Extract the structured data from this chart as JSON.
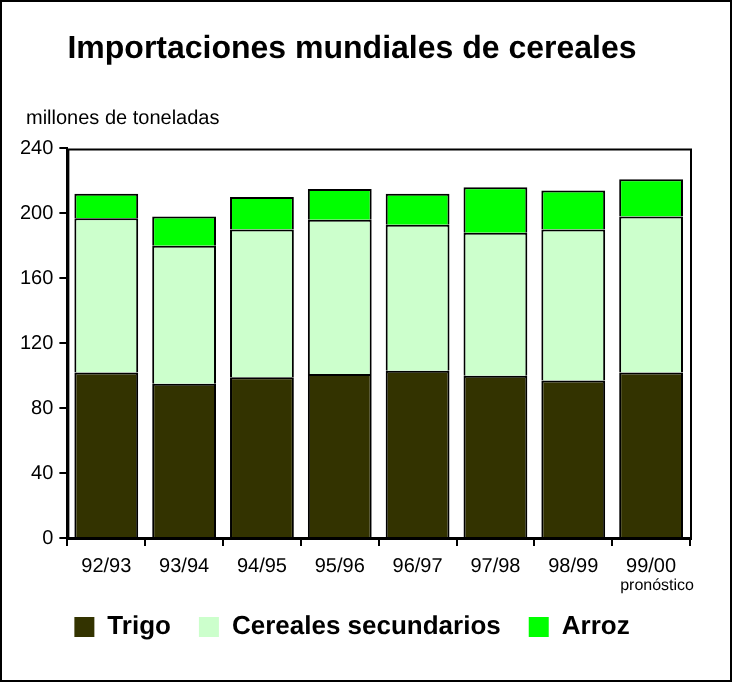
{
  "chart_data": {
    "type": "bar",
    "title": "Importaciones mundiales de cereales",
    "ylabel": "millones de toneladas",
    "categories": [
      "92/93",
      "93/94",
      "94/95",
      "95/96",
      "96/97",
      "97/98",
      "98/99",
      "99/00"
    ],
    "stacked": true,
    "ylim": [
      0,
      240
    ],
    "yticks": [
      0,
      40,
      80,
      120,
      160,
      200,
      240
    ],
    "legend": "bottom",
    "annotations": [
      "pronóstico"
    ],
    "series": [
      {
        "name": "Trigo",
        "color": "#333300",
        "values": [
          102,
          95,
          99,
          101,
          103,
          100,
          97,
          102
        ]
      },
      {
        "name": "Cereales secundarios",
        "color": "#ccffcc",
        "values": [
          95,
          85,
          91,
          95,
          90,
          88,
          93,
          96
        ]
      },
      {
        "name": "Arroz",
        "color": "#00ff00",
        "values": [
          15,
          18,
          20,
          19,
          19,
          28,
          24,
          23
        ]
      }
    ]
  }
}
